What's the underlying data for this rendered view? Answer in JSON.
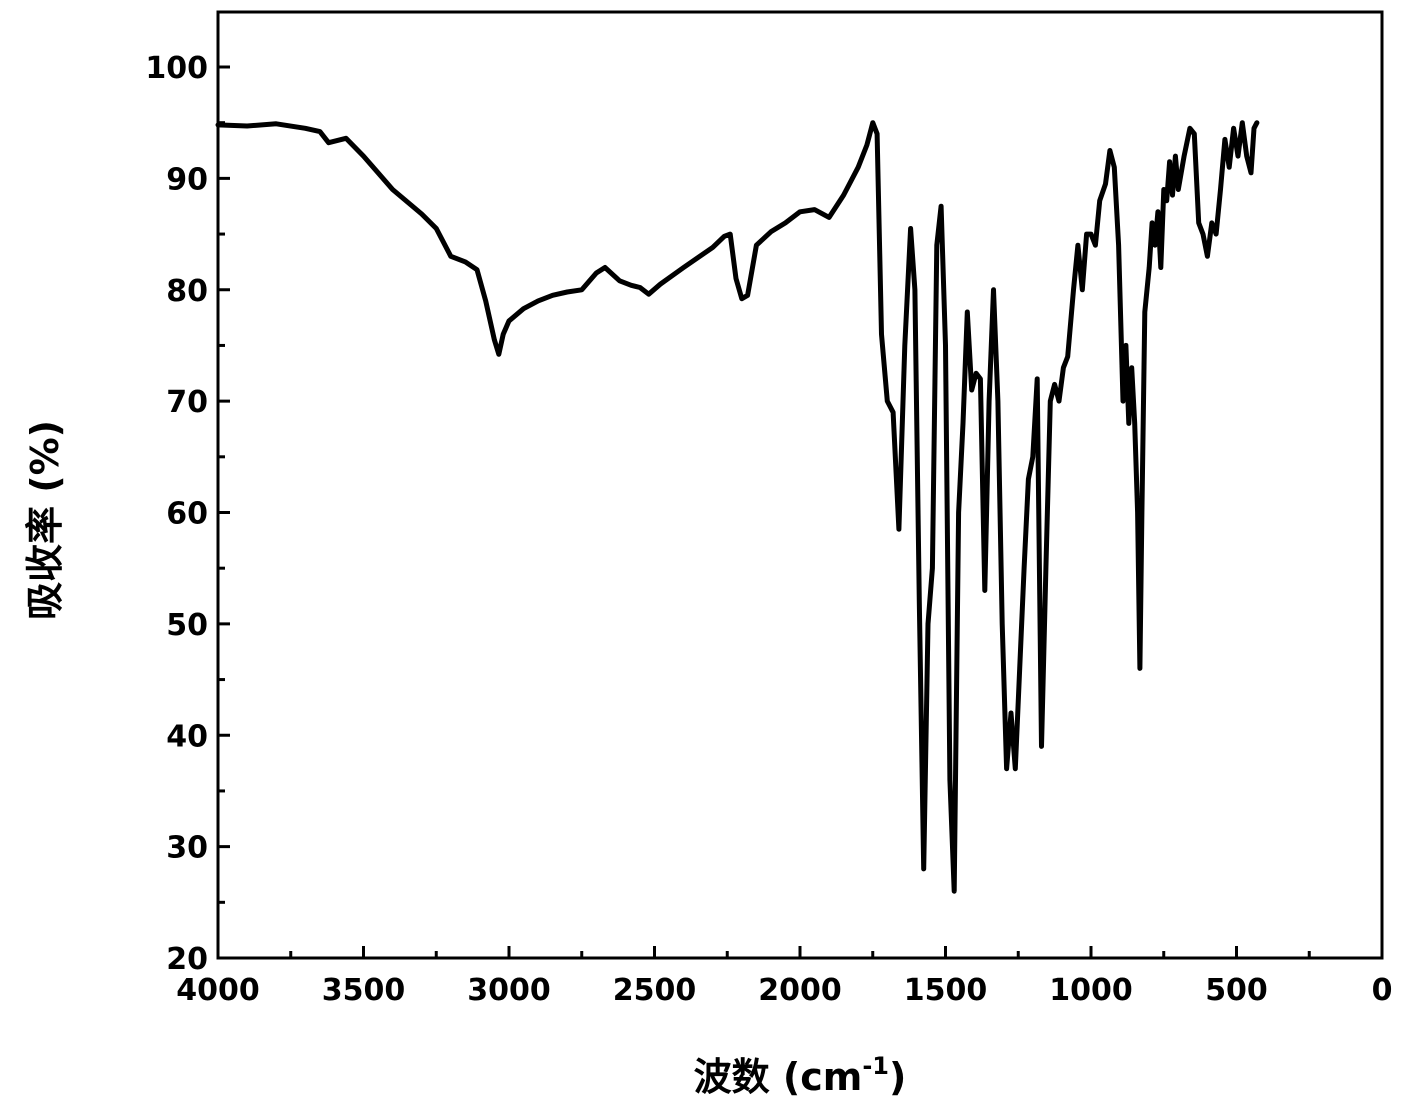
{
  "chart_data": {
    "type": "line",
    "xlabel": "波数 (cm",
    "xlabel_sup": "-1",
    "xlabel_close": ")",
    "ylabel": "吸收率 (%)",
    "xlim": [
      4000,
      0
    ],
    "ylim": [
      20,
      105
    ],
    "x_ticks": [
      4000,
      3500,
      3000,
      2500,
      2000,
      1500,
      1000,
      500,
      0
    ],
    "y_ticks": [
      20,
      30,
      40,
      50,
      60,
      70,
      80,
      90,
      100
    ],
    "grid": false,
    "series": [
      {
        "color": "#000000",
        "points": [
          [
            4000,
            94.8
          ],
          [
            3900,
            94.7
          ],
          [
            3800,
            94.9
          ],
          [
            3700,
            94.5
          ],
          [
            3650,
            94.2
          ],
          [
            3620,
            93.2
          ],
          [
            3560,
            93.6
          ],
          [
            3500,
            92.0
          ],
          [
            3400,
            89.0
          ],
          [
            3300,
            86.8
          ],
          [
            3250,
            85.5
          ],
          [
            3200,
            83.0
          ],
          [
            3150,
            82.5
          ],
          [
            3110,
            81.8
          ],
          [
            3080,
            79.0
          ],
          [
            3050,
            75.5
          ],
          [
            3035,
            74.2
          ],
          [
            3020,
            76.0
          ],
          [
            3000,
            77.2
          ],
          [
            2950,
            78.3
          ],
          [
            2900,
            79.0
          ],
          [
            2850,
            79.5
          ],
          [
            2800,
            79.8
          ],
          [
            2750,
            80.0
          ],
          [
            2700,
            81.5
          ],
          [
            2670,
            82.0
          ],
          [
            2620,
            80.8
          ],
          [
            2580,
            80.4
          ],
          [
            2550,
            80.2
          ],
          [
            2520,
            79.6
          ],
          [
            2480,
            80.5
          ],
          [
            2400,
            82.0
          ],
          [
            2300,
            83.8
          ],
          [
            2260,
            84.8
          ],
          [
            2240,
            85.0
          ],
          [
            2220,
            81.0
          ],
          [
            2200,
            79.2
          ],
          [
            2180,
            79.5
          ],
          [
            2150,
            84.0
          ],
          [
            2100,
            85.2
          ],
          [
            2050,
            86.0
          ],
          [
            2000,
            87.0
          ],
          [
            1950,
            87.2
          ],
          [
            1900,
            86.5
          ],
          [
            1850,
            88.5
          ],
          [
            1800,
            91.0
          ],
          [
            1770,
            93.0
          ],
          [
            1750,
            95.0
          ],
          [
            1735,
            94.0
          ],
          [
            1720,
            76.0
          ],
          [
            1700,
            70.0
          ],
          [
            1680,
            69.0
          ],
          [
            1660,
            58.5
          ],
          [
            1640,
            75.0
          ],
          [
            1620,
            85.5
          ],
          [
            1605,
            80.0
          ],
          [
            1590,
            52.0
          ],
          [
            1575,
            28.0
          ],
          [
            1560,
            50.0
          ],
          [
            1545,
            55.0
          ],
          [
            1530,
            84.0
          ],
          [
            1515,
            87.5
          ],
          [
            1500,
            75.0
          ],
          [
            1485,
            36.0
          ],
          [
            1470,
            26.0
          ],
          [
            1455,
            60.0
          ],
          [
            1440,
            68.0
          ],
          [
            1425,
            78.0
          ],
          [
            1410,
            71.0
          ],
          [
            1395,
            72.5
          ],
          [
            1380,
            72.0
          ],
          [
            1365,
            53.0
          ],
          [
            1350,
            70.0
          ],
          [
            1335,
            80.0
          ],
          [
            1320,
            70.0
          ],
          [
            1305,
            50.0
          ],
          [
            1290,
            37.0
          ],
          [
            1275,
            42.0
          ],
          [
            1260,
            37.0
          ],
          [
            1245,
            46.0
          ],
          [
            1230,
            55.0
          ],
          [
            1215,
            63.0
          ],
          [
            1200,
            65.0
          ],
          [
            1185,
            72.0
          ],
          [
            1170,
            39.0
          ],
          [
            1155,
            55.0
          ],
          [
            1140,
            70.0
          ],
          [
            1125,
            71.5
          ],
          [
            1110,
            70.0
          ],
          [
            1095,
            73.0
          ],
          [
            1080,
            74.0
          ],
          [
            1060,
            80.0
          ],
          [
            1045,
            84.0
          ],
          [
            1030,
            80.0
          ],
          [
            1015,
            85.0
          ],
          [
            1000,
            85.0
          ],
          [
            985,
            84.0
          ],
          [
            970,
            88.0
          ],
          [
            950,
            89.5
          ],
          [
            935,
            92.5
          ],
          [
            920,
            91.0
          ],
          [
            905,
            84.0
          ],
          [
            890,
            70.0
          ],
          [
            880,
            75.0
          ],
          [
            870,
            68.0
          ],
          [
            860,
            73.0
          ],
          [
            850,
            68.0
          ],
          [
            840,
            60.0
          ],
          [
            832,
            46.0
          ],
          [
            825,
            60.0
          ],
          [
            815,
            78.0
          ],
          [
            800,
            82.0
          ],
          [
            790,
            86.0
          ],
          [
            780,
            84.0
          ],
          [
            770,
            87.0
          ],
          [
            760,
            82.0
          ],
          [
            750,
            89.0
          ],
          [
            740,
            88.0
          ],
          [
            730,
            91.5
          ],
          [
            720,
            88.5
          ],
          [
            710,
            92.0
          ],
          [
            700,
            89.0
          ],
          [
            680,
            92.0
          ],
          [
            660,
            94.5
          ],
          [
            645,
            94.0
          ],
          [
            630,
            86.0
          ],
          [
            615,
            85.0
          ],
          [
            600,
            83.0
          ],
          [
            585,
            86.0
          ],
          [
            570,
            85.0
          ],
          [
            555,
            89.0
          ],
          [
            540,
            93.5
          ],
          [
            525,
            91.0
          ],
          [
            510,
            94.5
          ],
          [
            495,
            92.0
          ],
          [
            480,
            95.0
          ],
          [
            465,
            92.0
          ],
          [
            450,
            90.5
          ],
          [
            440,
            94.5
          ],
          [
            430,
            95.0
          ]
        ]
      }
    ]
  }
}
